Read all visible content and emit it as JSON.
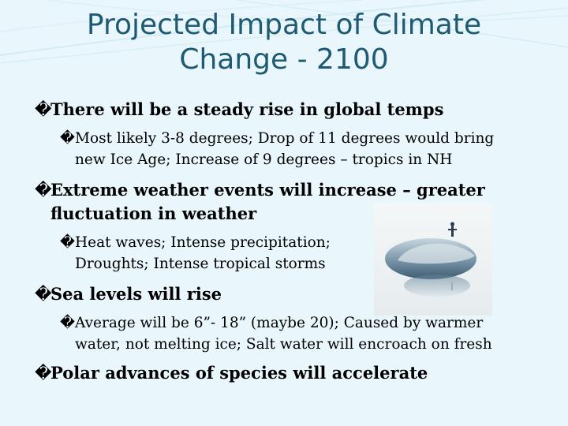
{
  "slide": {
    "title_line1": "Projected Impact of Climate",
    "title_line2": "Change - 2100",
    "bullet_glyph": "�",
    "bullets": [
      {
        "text": "There will be a steady rise in global temps",
        "sub": [
          {
            "line1": "Most likely 3-8 degrees; Drop of 11 degrees would bring",
            "line2": "new Ice Age; Increase of 9 degrees – tropics in NH"
          }
        ]
      },
      {
        "line1": "Extreme weather events will increase – greater",
        "line2": "fluctuation in weather",
        "sub": [
          {
            "line1": "Heat waves; Intense precipitation;",
            "line2": "Droughts; Intense tropical storms"
          }
        ]
      },
      {
        "text": "Sea levels will rise",
        "sub": [
          {
            "line1": "Average will be 6”- 18” (maybe 20); Caused by warmer",
            "line2": "water, not melting ice; Salt water will encroach on fresh"
          }
        ]
      },
      {
        "text": "Polar advances of species will accelerate"
      }
    ]
  },
  "image": {
    "icon": "iceberg-photo-icon"
  },
  "colors": {
    "background": "#e9f6fb",
    "title": "#1f5a73",
    "curves": "#cfe9f2"
  }
}
